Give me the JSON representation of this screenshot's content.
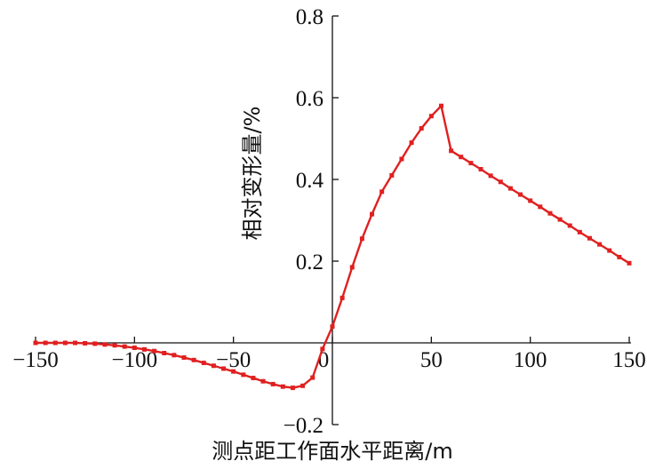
{
  "chart_data": {
    "type": "line",
    "xlabel": "测点距工作面水平距离/m",
    "ylabel": "相对变形量/%",
    "x": [
      -150,
      -145,
      -140,
      -135,
      -130,
      -125,
      -120,
      -115,
      -110,
      -105,
      -100,
      -95,
      -90,
      -85,
      -80,
      -75,
      -70,
      -65,
      -60,
      -55,
      -50,
      -45,
      -40,
      -35,
      -30,
      -25,
      -20,
      -15,
      -10,
      -5,
      0,
      5,
      10,
      15,
      20,
      25,
      30,
      35,
      40,
      45,
      50,
      55,
      60,
      65,
      70,
      75,
      80,
      85,
      90,
      95,
      100,
      105,
      110,
      115,
      120,
      125,
      130,
      135,
      140,
      145,
      150
    ],
    "series": [
      {
        "name": "相对变形量",
        "color": "#e02020",
        "values": [
          0,
          0,
          0,
          0,
          0,
          -0.001,
          -0.002,
          -0.004,
          -0.006,
          -0.009,
          -0.012,
          -0.016,
          -0.02,
          -0.025,
          -0.03,
          -0.036,
          -0.042,
          -0.049,
          -0.056,
          -0.063,
          -0.07,
          -0.078,
          -0.086,
          -0.094,
          -0.101,
          -0.107,
          -0.11,
          -0.105,
          -0.085,
          -0.015,
          0.04,
          0.11,
          0.185,
          0.255,
          0.315,
          0.37,
          0.41,
          0.45,
          0.49,
          0.525,
          0.555,
          0.58,
          0.47,
          0.455,
          0.44,
          0.425,
          0.409,
          0.394,
          0.378,
          0.363,
          0.348,
          0.333,
          0.317,
          0.302,
          0.287,
          0.271,
          0.256,
          0.241,
          0.226,
          0.21,
          0.195
        ]
      }
    ],
    "xlim": [
      -150,
      150
    ],
    "ylim": [
      -0.2,
      0.8
    ],
    "xticks": [
      {
        "value": -150,
        "label": "−150"
      },
      {
        "value": -100,
        "label": "−100"
      },
      {
        "value": -50,
        "label": "−50"
      },
      0,
      50,
      100,
      150
    ],
    "yticks": [
      {
        "value": -0.2,
        "label": "−0.2"
      },
      0.2,
      0.4,
      0.6,
      0.8
    ],
    "grid": false
  }
}
